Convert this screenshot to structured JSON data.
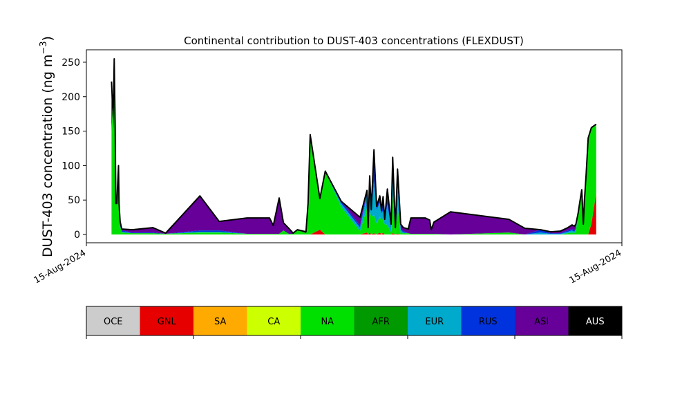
{
  "chart_data": {
    "type": "area",
    "title": "Continental contribution to DUST-403 concentrations (FLEXDUST)",
    "ylabel": "DUST-403 concentration (ng m",
    "ylabel_sup": "−3",
    "ylabel_close": ")",
    "xlabel": "",
    "ylim": [
      -12,
      268
    ],
    "yticks": [
      0,
      50,
      100,
      150,
      200,
      250
    ],
    "xlim": [
      0,
      1000
    ],
    "xtick_labels": [
      {
        "x": 0,
        "label": "15-Aug-2024"
      },
      {
        "x": 1000,
        "label": "15-Aug-2024"
      }
    ],
    "grid": false,
    "legend_placement": "bottom colorbar",
    "legend": [
      {
        "label": "OCE",
        "color": "#cccccc",
        "text_color": "#000000"
      },
      {
        "label": "GNL",
        "color": "#e60000",
        "text_color": "#000000"
      },
      {
        "label": "SA",
        "color": "#ffaa00",
        "text_color": "#000000"
      },
      {
        "label": "CA",
        "color": "#ccff00",
        "text_color": "#000000"
      },
      {
        "label": "NA",
        "color": "#00e000",
        "text_color": "#000000"
      },
      {
        "label": "AFR",
        "color": "#009900",
        "text_color": "#000000"
      },
      {
        "label": "EUR",
        "color": "#00aacc",
        "text_color": "#000000"
      },
      {
        "label": "RUS",
        "color": "#0033dd",
        "text_color": "#000000"
      },
      {
        "label": "ASI",
        "color": "#660099",
        "text_color": "#000000"
      },
      {
        "label": "AUS",
        "color": "#000000",
        "text_color": "#ffffff"
      }
    ],
    "x": [
      47,
      49,
      51,
      52,
      54,
      55,
      57,
      58,
      60,
      61,
      63,
      66,
      86,
      124,
      148,
      212,
      248,
      300,
      342,
      349,
      360,
      368,
      378,
      386,
      394,
      410,
      414,
      418,
      436,
      446,
      476,
      511,
      524,
      526,
      529,
      532,
      537,
      542,
      548,
      551,
      554,
      557,
      562,
      569,
      572,
      577,
      581,
      587,
      592,
      601,
      606,
      633,
      641,
      644,
      649,
      680,
      789,
      819,
      848,
      867,
      885,
      899,
      907,
      911,
      914,
      918,
      920,
      925,
      928,
      930,
      933,
      937,
      943,
      952
    ],
    "series": [
      {
        "name": "GNL",
        "values": [
          0,
          0,
          0,
          0,
          0,
          0,
          0,
          0,
          0,
          0,
          0,
          0,
          0,
          0,
          0,
          0,
          0,
          0,
          0,
          0,
          0,
          0,
          0,
          0,
          0,
          0,
          0,
          0,
          7,
          0,
          0,
          0,
          3,
          0,
          3,
          0,
          2,
          0,
          3,
          0,
          3,
          0,
          0,
          0,
          2,
          0,
          1,
          0,
          0,
          0,
          0,
          0,
          0,
          0,
          0,
          0,
          0,
          0,
          0,
          0,
          0,
          0,
          0,
          0,
          0,
          0,
          0,
          0,
          0,
          0,
          0,
          0,
          15,
          60
        ]
      },
      {
        "name": "NA",
        "values": [
          150,
          185,
          150,
          215,
          145,
          45,
          45,
          65,
          75,
          45,
          12,
          3,
          2,
          2,
          1,
          3,
          3,
          1,
          1,
          1,
          1,
          6,
          1,
          1,
          7,
          2,
          30,
          145,
          45,
          92,
          40,
          5,
          35,
          10,
          30,
          26,
          26,
          16,
          23,
          20,
          20,
          15,
          14,
          3,
          55,
          2,
          40,
          2,
          2,
          2,
          1,
          1,
          1,
          1,
          1,
          0,
          3,
          0,
          0,
          0,
          0,
          2,
          3,
          2,
          5,
          30,
          40,
          65,
          15,
          50,
          85,
          140,
          140,
          100
        ]
      },
      {
        "name": "EUR",
        "values": [
          0,
          0,
          0,
          0,
          0,
          0,
          0,
          0,
          0,
          0,
          1,
          1,
          0,
          0,
          0,
          1,
          1,
          0,
          0,
          0,
          0,
          0,
          0,
          0,
          0,
          0,
          0,
          0,
          0,
          0,
          5,
          5,
          20,
          0,
          38,
          5,
          50,
          20,
          20,
          10,
          12,
          5,
          30,
          6,
          30,
          2,
          30,
          5,
          1,
          0,
          0,
          0,
          0,
          0,
          0,
          0,
          0,
          0,
          3,
          1,
          1,
          2,
          3,
          2,
          3,
          0,
          0,
          0,
          0,
          0,
          0,
          0,
          0,
          0
        ]
      },
      {
        "name": "RUS",
        "values": [
          0,
          0,
          0,
          0,
          0,
          0,
          0,
          0,
          0,
          0,
          2,
          2,
          1,
          1,
          0,
          2,
          2,
          0,
          0,
          0,
          0,
          0,
          0,
          0,
          0,
          0,
          0,
          0,
          0,
          0,
          3,
          3,
          5,
          0,
          13,
          5,
          44,
          5,
          10,
          5,
          20,
          2,
          22,
          4,
          22,
          4,
          22,
          2,
          2,
          0,
          0,
          0,
          0,
          0,
          0,
          0,
          0,
          0,
          4,
          1,
          1,
          2,
          2,
          2,
          2,
          0,
          0,
          0,
          0,
          0,
          0,
          0,
          0,
          0
        ]
      },
      {
        "name": "ASI",
        "values": [
          0,
          0,
          0,
          0,
          0,
          0,
          0,
          0,
          0,
          0,
          4,
          2,
          4,
          7,
          1,
          50,
          13,
          23,
          23,
          12,
          52,
          11,
          8,
          1,
          0,
          2,
          15,
          0,
          0,
          0,
          0,
          12,
          1,
          0,
          1,
          0,
          1,
          0,
          0,
          0,
          0,
          0,
          0,
          2,
          3,
          2,
          2,
          6,
          5,
          6,
          23,
          23,
          20,
          6,
          17,
          33,
          19,
          9,
          0,
          2,
          3,
          4,
          6,
          6,
          5,
          0,
          0,
          0,
          0,
          0,
          0,
          0,
          0,
          0
        ]
      },
      {
        "name": "AUS",
        "values": [
          72,
          0,
          55,
          40,
          0,
          0,
          0,
          0,
          25,
          0,
          0,
          0,
          0,
          0,
          0,
          0,
          0,
          0,
          0,
          0,
          0,
          0,
          0,
          0,
          0,
          0,
          0,
          0,
          0,
          0,
          0,
          0,
          0,
          0,
          0,
          0,
          0,
          0,
          0,
          0,
          0,
          0,
          0,
          0,
          0,
          0,
          0,
          0,
          0,
          0,
          0,
          0,
          0,
          0,
          0,
          0,
          0,
          0,
          0,
          0,
          0,
          0,
          0,
          0,
          0,
          0,
          0,
          0,
          0,
          0,
          0,
          0,
          0,
          0
        ]
      }
    ]
  }
}
